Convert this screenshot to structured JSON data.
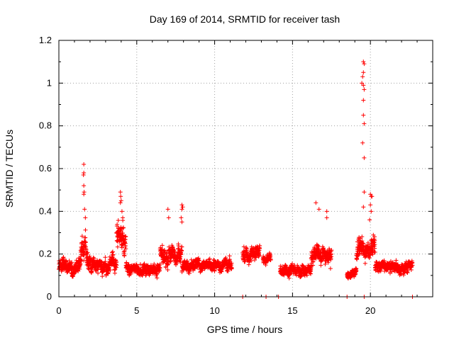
{
  "chart_data": {
    "type": "scatter",
    "title": "Day 169 of 2014, SRMTID for receiver tash",
    "xlabel": "GPS time / hours",
    "ylabel": "SRMTID / TECUs",
    "xlim": [
      0,
      24
    ],
    "ylim": [
      0,
      1.2
    ],
    "xticks": [
      0,
      5,
      10,
      15,
      20
    ],
    "xtick_labels": [
      "0",
      "5",
      "10",
      "15",
      "20"
    ],
    "yticks": [
      0,
      0.2,
      0.4,
      0.6,
      0.8,
      1.0,
      1.2
    ],
    "ytick_labels": [
      "0",
      "0.2",
      "0.4",
      "0.6",
      "0.8",
      "1",
      "1.2"
    ],
    "grid": true,
    "marker": "+",
    "color": "#ff0000",
    "series": [
      {
        "name": "SRMTID",
        "segments": [
          {
            "start": 0.0,
            "end": 1.4,
            "base": 0.14,
            "spread": 0.05
          },
          {
            "start": 1.4,
            "end": 1.8,
            "base": 0.22,
            "spread": 0.09
          },
          {
            "start": 1.8,
            "end": 3.7,
            "base": 0.15,
            "spread": 0.05
          },
          {
            "start": 3.7,
            "end": 4.3,
            "base": 0.28,
            "spread": 0.1
          },
          {
            "start": 4.3,
            "end": 6.5,
            "base": 0.13,
            "spread": 0.04
          },
          {
            "start": 6.5,
            "end": 7.9,
            "base": 0.19,
            "spread": 0.06
          },
          {
            "start": 7.9,
            "end": 11.1,
            "base": 0.14,
            "spread": 0.04
          },
          {
            "start": 11.8,
            "end": 12.9,
            "base": 0.2,
            "spread": 0.05
          },
          {
            "start": 13.1,
            "end": 13.6,
            "base": 0.18,
            "spread": 0.03
          },
          {
            "start": 14.2,
            "end": 16.2,
            "base": 0.12,
            "spread": 0.04
          },
          {
            "start": 16.2,
            "end": 17.5,
            "base": 0.2,
            "spread": 0.06
          },
          {
            "start": 18.5,
            "end": 19.1,
            "base": 0.11,
            "spread": 0.03
          },
          {
            "start": 19.1,
            "end": 20.3,
            "base": 0.22,
            "spread": 0.07
          },
          {
            "start": 20.3,
            "end": 22.7,
            "base": 0.14,
            "spread": 0.04
          }
        ],
        "peaks": [
          {
            "x": 1.6,
            "y": 0.62
          },
          {
            "x": 1.6,
            "y": 0.58
          },
          {
            "x": 1.58,
            "y": 0.57
          },
          {
            "x": 1.6,
            "y": 0.52
          },
          {
            "x": 1.62,
            "y": 0.49
          },
          {
            "x": 1.6,
            "y": 0.48
          },
          {
            "x": 1.65,
            "y": 0.41
          },
          {
            "x": 1.7,
            "y": 0.37
          },
          {
            "x": 3.95,
            "y": 0.49
          },
          {
            "x": 3.97,
            "y": 0.47
          },
          {
            "x": 4.0,
            "y": 0.45
          },
          {
            "x": 3.95,
            "y": 0.44
          },
          {
            "x": 4.05,
            "y": 0.4
          },
          {
            "x": 4.1,
            "y": 0.37
          },
          {
            "x": 7.0,
            "y": 0.41
          },
          {
            "x": 7.05,
            "y": 0.37
          },
          {
            "x": 7.9,
            "y": 0.43
          },
          {
            "x": 7.95,
            "y": 0.42
          },
          {
            "x": 7.9,
            "y": 0.41
          },
          {
            "x": 7.85,
            "y": 0.37
          },
          {
            "x": 7.9,
            "y": 0.35
          },
          {
            "x": 16.5,
            "y": 0.44
          },
          {
            "x": 16.7,
            "y": 0.41
          },
          {
            "x": 17.2,
            "y": 0.4
          },
          {
            "x": 17.2,
            "y": 0.37
          },
          {
            "x": 19.55,
            "y": 1.1
          },
          {
            "x": 19.6,
            "y": 1.09
          },
          {
            "x": 19.55,
            "y": 1.05
          },
          {
            "x": 19.5,
            "y": 1.03
          },
          {
            "x": 19.45,
            "y": 1.0
          },
          {
            "x": 19.55,
            "y": 0.99
          },
          {
            "x": 19.6,
            "y": 0.97
          },
          {
            "x": 19.55,
            "y": 0.92
          },
          {
            "x": 19.55,
            "y": 0.85
          },
          {
            "x": 19.6,
            "y": 0.81
          },
          {
            "x": 19.5,
            "y": 0.72
          },
          {
            "x": 19.6,
            "y": 0.65
          },
          {
            "x": 19.6,
            "y": 0.49
          },
          {
            "x": 19.55,
            "y": 0.42
          },
          {
            "x": 20.0,
            "y": 0.48
          },
          {
            "x": 20.05,
            "y": 0.47
          },
          {
            "x": 20.1,
            "y": 0.47
          },
          {
            "x": 20.0,
            "y": 0.43
          },
          {
            "x": 20.05,
            "y": 0.4
          },
          {
            "x": 19.95,
            "y": 0.36
          }
        ],
        "zeros": [
          11.8,
          13.3,
          14.1,
          18.5,
          19.6,
          22.7
        ]
      }
    ]
  }
}
